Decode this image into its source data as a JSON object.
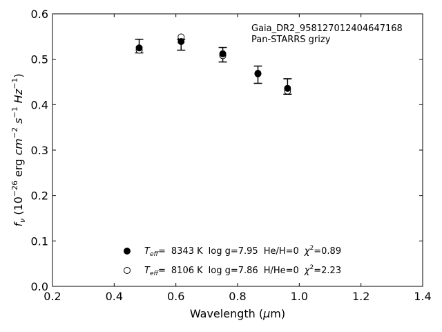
{
  "chart_data": {
    "type": "scatter",
    "xlabel_parts": {
      "main": "Wavelength (",
      "mu": "μ",
      "unit": "m)"
    },
    "ylabel_parts": {
      "sym": "f",
      "sub": "ν",
      "pre": " (10",
      "exp1": "−26",
      "mid1": " erg ",
      "cm": "cm",
      "exp2": "−2",
      "s": " s",
      "exp3": "−1",
      "hz": " Hz",
      "exp4": "−1",
      "post": ")"
    },
    "xlim": [
      0.2,
      1.4
    ],
    "ylim": [
      0.0,
      0.6
    ],
    "x_ticks": [
      "0.2",
      "0.4",
      "0.6",
      "0.8",
      "1.0",
      "1.2",
      "1.4"
    ],
    "y_ticks": [
      "0.0",
      "0.1",
      "0.2",
      "0.3",
      "0.4",
      "0.5",
      "0.6"
    ],
    "annotations": [
      "Gaia_DR2_958127012404647168",
      "Pan-STARRS grizy"
    ],
    "observed": {
      "x": [
        0.481,
        0.617,
        0.752,
        0.866,
        0.962
      ],
      "y": [
        0.529,
        0.532,
        0.51,
        0.466,
        0.44
      ],
      "err": [
        0.015,
        0.012,
        0.016,
        0.019,
        0.017
      ]
    },
    "series": [
      {
        "marker": "filled",
        "x": [
          0.481,
          0.617,
          0.752,
          0.866,
          0.962
        ],
        "y": [
          0.525,
          0.539,
          0.512,
          0.469,
          0.436
        ],
        "legend": {
          "teff": "8343 K",
          "logg": "log g=7.95",
          "comp": "He/H=0",
          "chi2": "0.89"
        }
      },
      {
        "marker": "open",
        "x": [
          0.481,
          0.617,
          0.752,
          0.866,
          0.962
        ],
        "y": [
          0.52,
          0.549,
          0.508,
          0.468,
          0.43
        ],
        "legend": {
          "teff": "8106 K",
          "logg": "log g=7.86",
          "comp": "H/He=0",
          "chi2": "2.23"
        }
      }
    ],
    "legend_labels": {
      "teff_T": "T",
      "teff_sub": "eff",
      "eq": "=",
      "chi": "χ",
      "sq": "2",
      "chi_eq": "="
    }
  }
}
